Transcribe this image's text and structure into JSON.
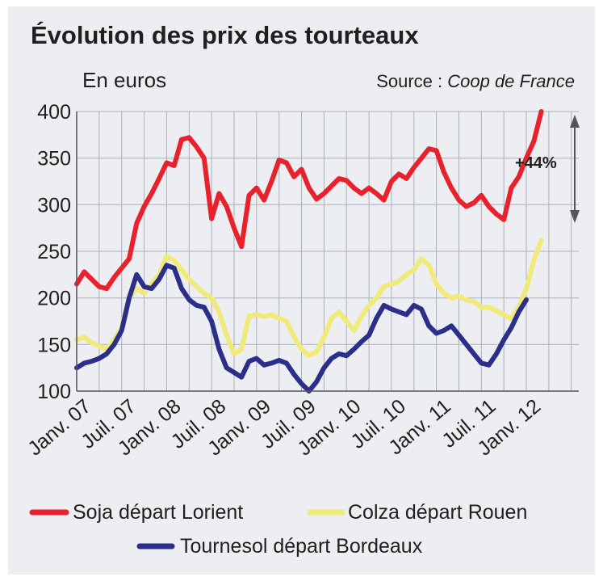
{
  "chart_data": {
    "type": "line",
    "title": "Évolution des prix des tourteaux",
    "unit_label": "En euros",
    "source_label": "Source : ",
    "source_name": "Coop de France",
    "annotation": "+44%",
    "ylim": [
      100,
      400
    ],
    "yticks": [
      "100",
      "150",
      "200",
      "250",
      "300",
      "350",
      "400"
    ],
    "x_range": [
      0,
      67
    ],
    "categories": [
      "Janv. 07",
      "Juil. 07",
      "Janv. 08",
      "Juil. 08",
      "Janv. 09",
      "Juil. 09",
      "Janv. 10",
      "Juil. 10",
      "Janv. 11",
      "Juil. 11",
      "Janv. 12"
    ],
    "category_month_index": [
      0,
      6,
      12,
      18,
      24,
      30,
      36,
      42,
      48,
      54,
      60
    ],
    "grid": true,
    "legend_position": "bottom",
    "series": [
      {
        "name": "Soja départ Lorient",
        "color": "#e8222c",
        "points": [
          [
            0,
            215
          ],
          [
            1,
            228
          ],
          [
            2,
            220
          ],
          [
            3,
            212
          ],
          [
            4,
            210
          ],
          [
            5,
            222
          ],
          [
            6,
            232
          ],
          [
            7,
            242
          ],
          [
            8,
            280
          ],
          [
            9,
            298
          ],
          [
            10,
            312
          ],
          [
            11,
            328
          ],
          [
            12,
            345
          ],
          [
            13,
            342
          ],
          [
            14,
            370
          ],
          [
            15,
            372
          ],
          [
            16,
            362
          ],
          [
            17,
            350
          ],
          [
            18,
            285
          ],
          [
            19,
            312
          ],
          [
            20,
            298
          ],
          [
            21,
            275
          ],
          [
            22,
            255
          ],
          [
            23,
            310
          ],
          [
            24,
            318
          ],
          [
            25,
            305
          ],
          [
            26,
            325
          ],
          [
            27,
            348
          ],
          [
            28,
            345
          ],
          [
            29,
            330
          ],
          [
            30,
            338
          ],
          [
            31,
            318
          ],
          [
            32,
            306
          ],
          [
            33,
            312
          ],
          [
            34,
            320
          ],
          [
            35,
            328
          ],
          [
            36,
            326
          ],
          [
            37,
            318
          ],
          [
            38,
            312
          ],
          [
            39,
            318
          ],
          [
            40,
            312
          ],
          [
            41,
            305
          ],
          [
            42,
            325
          ],
          [
            43,
            333
          ],
          [
            44,
            328
          ],
          [
            45,
            340
          ],
          [
            46,
            350
          ],
          [
            47,
            360
          ],
          [
            48,
            358
          ],
          [
            49,
            335
          ],
          [
            50,
            318
          ],
          [
            51,
            305
          ],
          [
            52,
            298
          ],
          [
            53,
            302
          ],
          [
            54,
            310
          ],
          [
            55,
            298
          ],
          [
            56,
            290
          ],
          [
            57,
            284
          ],
          [
            58,
            318
          ],
          [
            59,
            330
          ],
          [
            60,
            350
          ],
          [
            61,
            368
          ],
          [
            62,
            400
          ]
        ]
      },
      {
        "name": "Colza départ Rouen",
        "color": "#f0ea7a",
        "points": [
          [
            0,
            155
          ],
          [
            1,
            158
          ],
          [
            2,
            152
          ],
          [
            3,
            148
          ],
          [
            4,
            145
          ],
          [
            5,
            155
          ],
          [
            6,
            168
          ],
          [
            7,
            200
          ],
          [
            8,
            210
          ],
          [
            9,
            205
          ],
          [
            10,
            215
          ],
          [
            11,
            225
          ],
          [
            12,
            245
          ],
          [
            13,
            240
          ],
          [
            14,
            230
          ],
          [
            15,
            220
          ],
          [
            16,
            212
          ],
          [
            17,
            205
          ],
          [
            18,
            200
          ],
          [
            19,
            185
          ],
          [
            20,
            160
          ],
          [
            21,
            140
          ],
          [
            22,
            145
          ],
          [
            23,
            180
          ],
          [
            24,
            182
          ],
          [
            25,
            180
          ],
          [
            26,
            182
          ],
          [
            27,
            178
          ],
          [
            28,
            175
          ],
          [
            29,
            158
          ],
          [
            30,
            145
          ],
          [
            31,
            138
          ],
          [
            32,
            142
          ],
          [
            33,
            158
          ],
          [
            34,
            178
          ],
          [
            35,
            185
          ],
          [
            36,
            175
          ],
          [
            37,
            165
          ],
          [
            38,
            180
          ],
          [
            39,
            192
          ],
          [
            40,
            200
          ],
          [
            41,
            212
          ],
          [
            42,
            215
          ],
          [
            43,
            218
          ],
          [
            44,
            225
          ],
          [
            45,
            230
          ],
          [
            46,
            242
          ],
          [
            47,
            235
          ],
          [
            48,
            215
          ],
          [
            49,
            205
          ],
          [
            50,
            200
          ],
          [
            51,
            202
          ],
          [
            52,
            198
          ],
          [
            53,
            196
          ],
          [
            54,
            190
          ],
          [
            55,
            190
          ],
          [
            56,
            186
          ],
          [
            57,
            182
          ],
          [
            58,
            178
          ],
          [
            59,
            190
          ],
          [
            60,
            210
          ],
          [
            61,
            240
          ],
          [
            62,
            262
          ]
        ]
      },
      {
        "name": "Tournesol départ Bordeaux",
        "color": "#2b2f8a",
        "points": [
          [
            0,
            125
          ],
          [
            1,
            130
          ],
          [
            2,
            132
          ],
          [
            3,
            135
          ],
          [
            4,
            140
          ],
          [
            5,
            150
          ],
          [
            6,
            165
          ],
          [
            7,
            200
          ],
          [
            8,
            225
          ],
          [
            9,
            212
          ],
          [
            10,
            210
          ],
          [
            11,
            220
          ],
          [
            12,
            235
          ],
          [
            13,
            232
          ],
          [
            14,
            210
          ],
          [
            15,
            198
          ],
          [
            16,
            192
          ],
          [
            17,
            190
          ],
          [
            18,
            175
          ],
          [
            19,
            145
          ],
          [
            20,
            125
          ],
          [
            21,
            120
          ],
          [
            22,
            115
          ],
          [
            23,
            132
          ],
          [
            24,
            135
          ],
          [
            25,
            128
          ],
          [
            26,
            130
          ],
          [
            27,
            133
          ],
          [
            28,
            130
          ],
          [
            29,
            118
          ],
          [
            30,
            108
          ],
          [
            31,
            100
          ],
          [
            32,
            110
          ],
          [
            33,
            125
          ],
          [
            34,
            135
          ],
          [
            35,
            140
          ],
          [
            36,
            138
          ],
          [
            37,
            145
          ],
          [
            38,
            153
          ],
          [
            39,
            160
          ],
          [
            40,
            178
          ],
          [
            41,
            192
          ],
          [
            42,
            188
          ],
          [
            43,
            185
          ],
          [
            44,
            182
          ],
          [
            45,
            192
          ],
          [
            46,
            188
          ],
          [
            47,
            170
          ],
          [
            48,
            162
          ],
          [
            49,
            165
          ],
          [
            50,
            170
          ],
          [
            51,
            160
          ],
          [
            52,
            150
          ],
          [
            53,
            140
          ],
          [
            54,
            130
          ],
          [
            55,
            128
          ],
          [
            56,
            140
          ],
          [
            57,
            155
          ],
          [
            58,
            168
          ],
          [
            59,
            185
          ],
          [
            60,
            198
          ]
        ]
      }
    ]
  }
}
